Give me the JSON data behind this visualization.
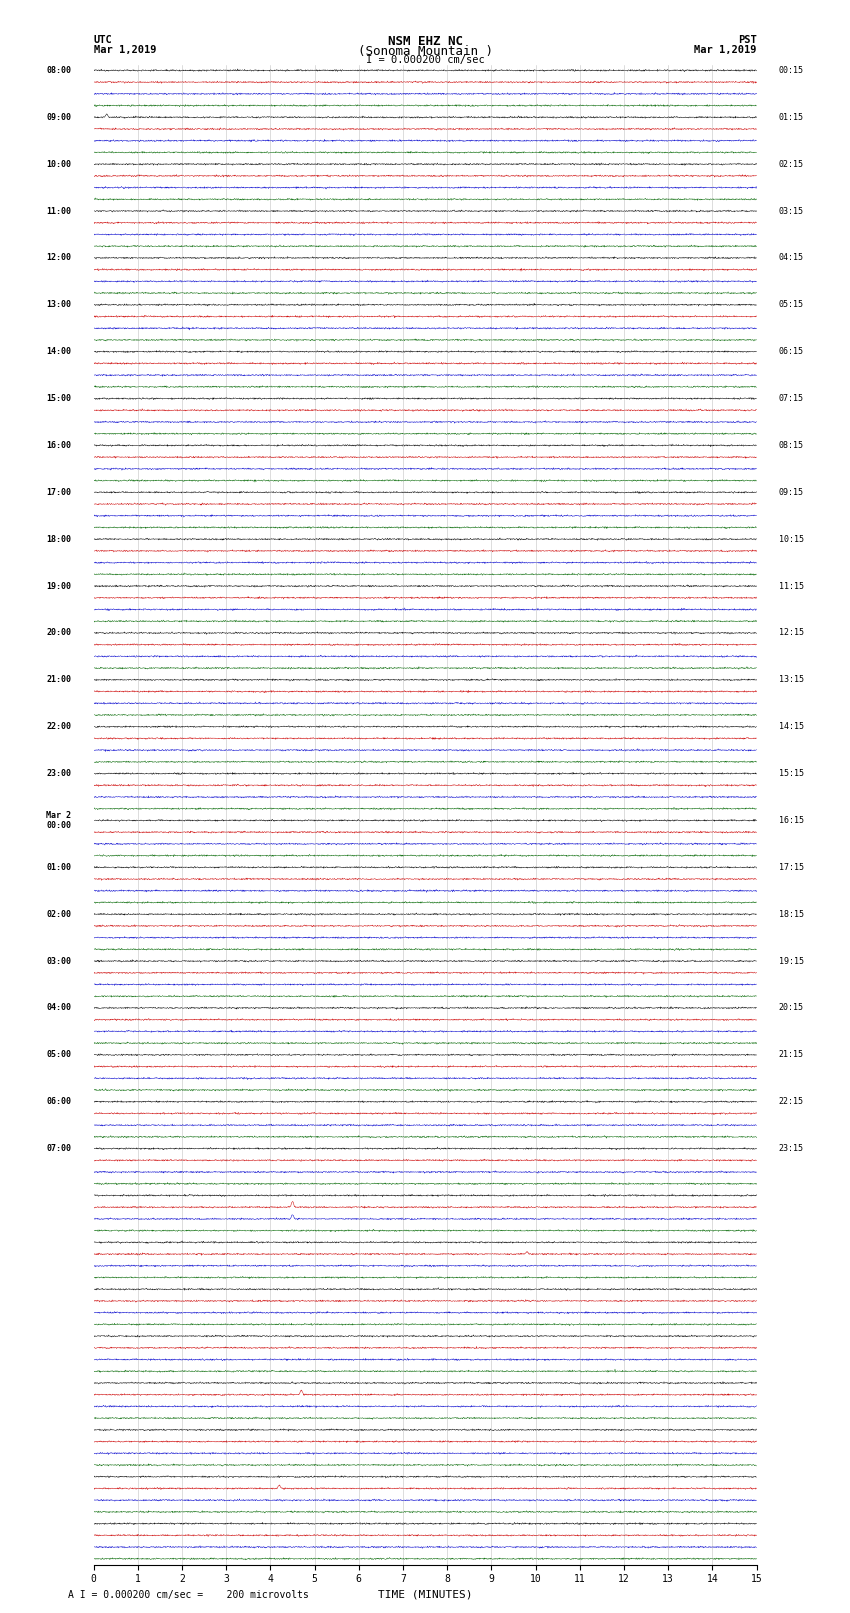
{
  "title_line1": "NSM EHZ NC",
  "title_line2": "(Sonoma Mountain )",
  "scale_label": "I = 0.000200 cm/sec",
  "bottom_label": "A I = 0.000200 cm/sec =    200 microvolts",
  "utc_label": "UTC",
  "utc_date": "Mar 1,2019",
  "pst_label": "PST",
  "pst_date": "Mar 1,2019",
  "xlabel": "TIME (MINUTES)",
  "background_color": "#ffffff",
  "trace_colors": [
    "#000000",
    "#cc0000",
    "#0000cc",
    "#006600"
  ],
  "num_rows": 32,
  "traces_per_row": 4,
  "minutes_per_row": 15,
  "noise_amplitude": 0.03,
  "utc_times_labels": [
    "08:00",
    "09:00",
    "10:00",
    "11:00",
    "12:00",
    "13:00",
    "14:00",
    "15:00",
    "16:00",
    "17:00",
    "18:00",
    "19:00",
    "20:00",
    "21:00",
    "22:00",
    "23:00",
    "Mar 2\n00:00",
    "01:00",
    "02:00",
    "03:00",
    "04:00",
    "05:00",
    "06:00",
    "07:00"
  ],
  "utc_times_rows": [
    0,
    4,
    8,
    12,
    16,
    20,
    24,
    28,
    32,
    36,
    40,
    44,
    48,
    52,
    56,
    60,
    64,
    68,
    72,
    76,
    80,
    84,
    88,
    92
  ],
  "pst_times_labels": [
    "00:15",
    "01:15",
    "02:15",
    "03:15",
    "04:15",
    "05:15",
    "06:15",
    "07:15",
    "08:15",
    "09:15",
    "10:15",
    "11:15",
    "12:15",
    "13:15",
    "14:15",
    "15:15",
    "16:15",
    "17:15",
    "18:15",
    "19:15",
    "20:15",
    "21:15",
    "22:15",
    "23:15"
  ],
  "pst_times_rows": [
    0,
    4,
    8,
    12,
    16,
    20,
    24,
    28,
    32,
    36,
    40,
    44,
    48,
    52,
    56,
    60,
    64,
    68,
    72,
    76,
    80,
    84,
    88,
    92
  ],
  "xticks": [
    0,
    1,
    2,
    3,
    4,
    5,
    6,
    7,
    8,
    9,
    10,
    11,
    12,
    13,
    14,
    15
  ],
  "special_spikes": [
    {
      "trace_idx": 4,
      "minute": 0.3,
      "amplitude": 0.25
    },
    {
      "trace_idx": 97,
      "minute": 4.5,
      "amplitude": 0.5
    },
    {
      "trace_idx": 98,
      "minute": 4.5,
      "amplitude": 0.35
    },
    {
      "trace_idx": 101,
      "minute": 9.8,
      "amplitude": 0.2
    },
    {
      "trace_idx": 113,
      "minute": 4.7,
      "amplitude": 0.4
    },
    {
      "trace_idx": 121,
      "minute": 4.2,
      "amplitude": 0.3
    }
  ],
  "vline_color": "#888888",
  "vline_alpha": 0.5,
  "vline_lw": 0.4
}
